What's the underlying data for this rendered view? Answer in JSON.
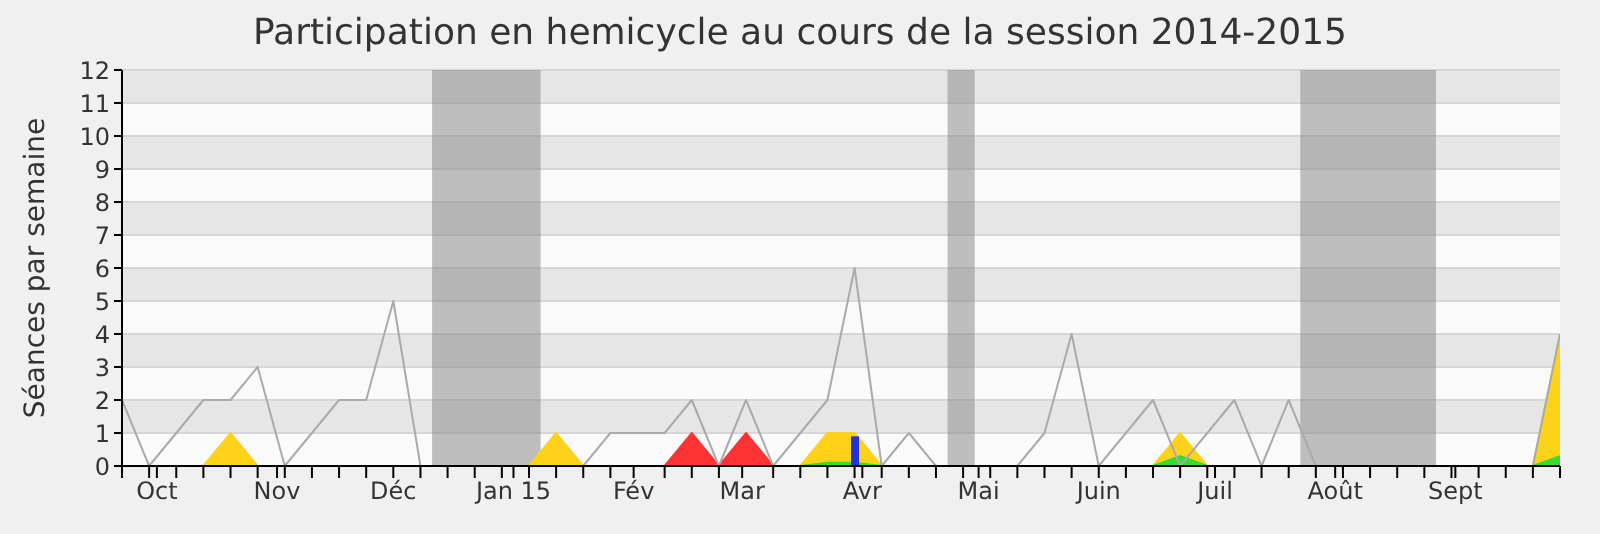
{
  "chart_data": {
    "type": "area",
    "title": "Participation en hemicycle au cours de la session 2014-2015",
    "ylabel": "Séances par semaine",
    "x": [
      "2014-09-22",
      "2014-09-29",
      "2014-10-06",
      "2014-10-13",
      "2014-10-20",
      "2014-10-27",
      "2014-11-03",
      "2014-11-10",
      "2014-11-17",
      "2014-11-24",
      "2014-12-01",
      "2014-12-08",
      "2014-12-15",
      "2014-12-22",
      "2014-12-29",
      "2015-01-05",
      "2015-01-12",
      "2015-01-19",
      "2015-01-26",
      "2015-02-02",
      "2015-02-09",
      "2015-02-16",
      "2015-02-23",
      "2015-03-02",
      "2015-03-09",
      "2015-03-16",
      "2015-03-23",
      "2015-03-30",
      "2015-04-06",
      "2015-04-13",
      "2015-04-20",
      "2015-04-27",
      "2015-05-04",
      "2015-05-11",
      "2015-05-18",
      "2015-05-25",
      "2015-06-01",
      "2015-06-08",
      "2015-06-15",
      "2015-06-22",
      "2015-06-29",
      "2015-07-06",
      "2015-07-13",
      "2015-07-20",
      "2015-07-27",
      "2015-08-03",
      "2015-08-10",
      "2015-08-17",
      "2015-08-24",
      "2015-08-31",
      "2015-09-07",
      "2015-09-14",
      "2015-09-21",
      "2015-09-28"
    ],
    "series": [
      {
        "color": "#ffd21a",
        "values": [
          0,
          0,
          0,
          0,
          1,
          0,
          0,
          0,
          0,
          0,
          0,
          0,
          0,
          0,
          0,
          0,
          1,
          0,
          0,
          0,
          0,
          0,
          0,
          0,
          0,
          0,
          1,
          1,
          0,
          0,
          0,
          0,
          0,
          0,
          0,
          0,
          0,
          0,
          0,
          1,
          0,
          0,
          0,
          0,
          0,
          0,
          0,
          0,
          0,
          0,
          0,
          0,
          0,
          4
        ]
      },
      {
        "color": "#ff3333",
        "values": [
          0,
          0,
          0,
          0,
          0,
          0,
          0,
          0,
          0,
          0,
          0,
          0,
          0,
          0,
          0,
          0,
          0,
          0,
          0,
          0,
          0,
          1,
          0,
          1,
          0,
          0,
          0,
          0,
          0,
          0,
          0,
          0,
          0,
          0,
          0,
          0,
          0,
          0,
          0,
          0,
          0,
          0,
          0,
          0,
          0,
          0,
          0,
          0,
          0,
          0,
          0,
          0,
          0,
          0
        ]
      },
      {
        "color": "#33dd33",
        "values": [
          0,
          0,
          0,
          0,
          0,
          0,
          0,
          0,
          0,
          0,
          0,
          0,
          0,
          0,
          0,
          0,
          0,
          0,
          0,
          0,
          0,
          0,
          0,
          0,
          0,
          0,
          0.1,
          0.1,
          0,
          0,
          0,
          0,
          0,
          0,
          0,
          0,
          0,
          0,
          0,
          0.3,
          0,
          0,
          0,
          0,
          0,
          0,
          0,
          0,
          0,
          0,
          0,
          0,
          0,
          0.3
        ]
      },
      {
        "type": "bar",
        "color": "#2233dd",
        "values": [
          null,
          null,
          null,
          null,
          null,
          null,
          null,
          null,
          null,
          null,
          null,
          null,
          null,
          null,
          null,
          null,
          null,
          null,
          null,
          null,
          null,
          null,
          null,
          null,
          null,
          null,
          null,
          0.9,
          null,
          null,
          null,
          null,
          null,
          null,
          null,
          null,
          null,
          null,
          null,
          null,
          null,
          null,
          null,
          null,
          null,
          null,
          null,
          null,
          null,
          null,
          null,
          null,
          null,
          null
        ]
      },
      {
        "type": "line",
        "color": "#aaaaaa",
        "values": [
          2,
          0,
          1,
          2,
          2,
          3,
          0,
          1,
          2,
          2,
          5,
          0,
          0,
          0,
          0,
          0,
          0,
          0,
          1,
          1,
          1,
          2,
          0,
          2,
          0,
          1,
          2,
          6,
          0,
          1,
          0,
          0,
          0,
          0,
          1,
          4,
          0,
          1,
          2,
          0,
          1,
          2,
          0,
          2,
          0,
          0,
          0,
          0,
          0,
          0,
          0,
          0,
          0,
          4
        ]
      }
    ],
    "xlim": [
      "2014-09-22",
      "2015-09-28"
    ],
    "xticks": [
      {
        "value": "2014-09-22",
        "label": null
      },
      {
        "value": "2014-09-29",
        "label": null
      },
      {
        "value": "2014-10-01",
        "label": "Oct"
      },
      {
        "value": "2014-10-06",
        "label": null
      },
      {
        "value": "2014-10-13",
        "label": null
      },
      {
        "value": "2014-10-20",
        "label": null
      },
      {
        "value": "2014-10-27",
        "label": null
      },
      {
        "value": "2014-11-01",
        "label": "Nov"
      },
      {
        "value": "2014-11-03",
        "label": null
      },
      {
        "value": "2014-11-10",
        "label": null
      },
      {
        "value": "2014-11-17",
        "label": null
      },
      {
        "value": "2014-11-24",
        "label": null
      },
      {
        "value": "2014-12-01",
        "label": "Déc"
      },
      {
        "value": "2014-12-08",
        "label": null
      },
      {
        "value": "2014-12-15",
        "label": null
      },
      {
        "value": "2014-12-22",
        "label": null
      },
      {
        "value": "2014-12-29",
        "label": null
      },
      {
        "value": "2015-01-01",
        "label": "Jan 15"
      },
      {
        "value": "2015-01-05",
        "label": null
      },
      {
        "value": "2015-01-12",
        "label": null
      },
      {
        "value": "2015-01-19",
        "label": null
      },
      {
        "value": "2015-01-26",
        "label": null
      },
      {
        "value": "2015-02-01",
        "label": "Fév"
      },
      {
        "value": "2015-02-09",
        "label": null
      },
      {
        "value": "2015-02-16",
        "label": null
      },
      {
        "value": "2015-02-23",
        "label": null
      },
      {
        "value": "2015-03-01",
        "label": "Mar"
      },
      {
        "value": "2015-03-09",
        "label": null
      },
      {
        "value": "2015-03-16",
        "label": null
      },
      {
        "value": "2015-03-23",
        "label": null
      },
      {
        "value": "2015-03-30",
        "label": null
      },
      {
        "value": "2015-04-01",
        "label": "Avr"
      },
      {
        "value": "2015-04-06",
        "label": null
      },
      {
        "value": "2015-04-13",
        "label": null
      },
      {
        "value": "2015-04-20",
        "label": null
      },
      {
        "value": "2015-04-27",
        "label": null
      },
      {
        "value": "2015-05-01",
        "label": "Mai"
      },
      {
        "value": "2015-05-04",
        "label": null
      },
      {
        "value": "2015-05-11",
        "label": null
      },
      {
        "value": "2015-05-18",
        "label": null
      },
      {
        "value": "2015-05-25",
        "label": null
      },
      {
        "value": "2015-06-01",
        "label": "Juin"
      },
      {
        "value": "2015-06-08",
        "label": null
      },
      {
        "value": "2015-06-15",
        "label": null
      },
      {
        "value": "2015-06-22",
        "label": null
      },
      {
        "value": "2015-06-29",
        "label": null
      },
      {
        "value": "2015-07-01",
        "label": "Juil"
      },
      {
        "value": "2015-07-06",
        "label": null
      },
      {
        "value": "2015-07-13",
        "label": null
      },
      {
        "value": "2015-07-20",
        "label": null
      },
      {
        "value": "2015-07-27",
        "label": null
      },
      {
        "value": "2015-08-01",
        "label": "Août"
      },
      {
        "value": "2015-08-03",
        "label": null
      },
      {
        "value": "2015-08-10",
        "label": null
      },
      {
        "value": "2015-08-17",
        "label": null
      },
      {
        "value": "2015-08-24",
        "label": null
      },
      {
        "value": "2015-08-31",
        "label": null
      },
      {
        "value": "2015-09-01",
        "label": "Sept"
      },
      {
        "value": "2015-09-07",
        "label": null
      },
      {
        "value": "2015-09-14",
        "label": null
      },
      {
        "value": "2015-09-21",
        "label": null
      },
      {
        "value": "2015-09-28",
        "label": null
      }
    ],
    "ylim": [
      0,
      12
    ],
    "yticks": [
      0,
      1,
      2,
      3,
      4,
      5,
      6,
      7,
      8,
      9,
      10,
      11,
      12
    ],
    "grid": "y",
    "bands": [
      {
        "axis": "x",
        "from": "2014-12-11",
        "to": "2015-01-08",
        "color": "#8c8c8c"
      },
      {
        "axis": "x",
        "from": "2015-04-23",
        "to": "2015-04-30",
        "color": "#8c8c8c"
      },
      {
        "axis": "x",
        "from": "2015-07-23",
        "to": "2015-08-27",
        "color": "#8c8c8c"
      }
    ]
  }
}
